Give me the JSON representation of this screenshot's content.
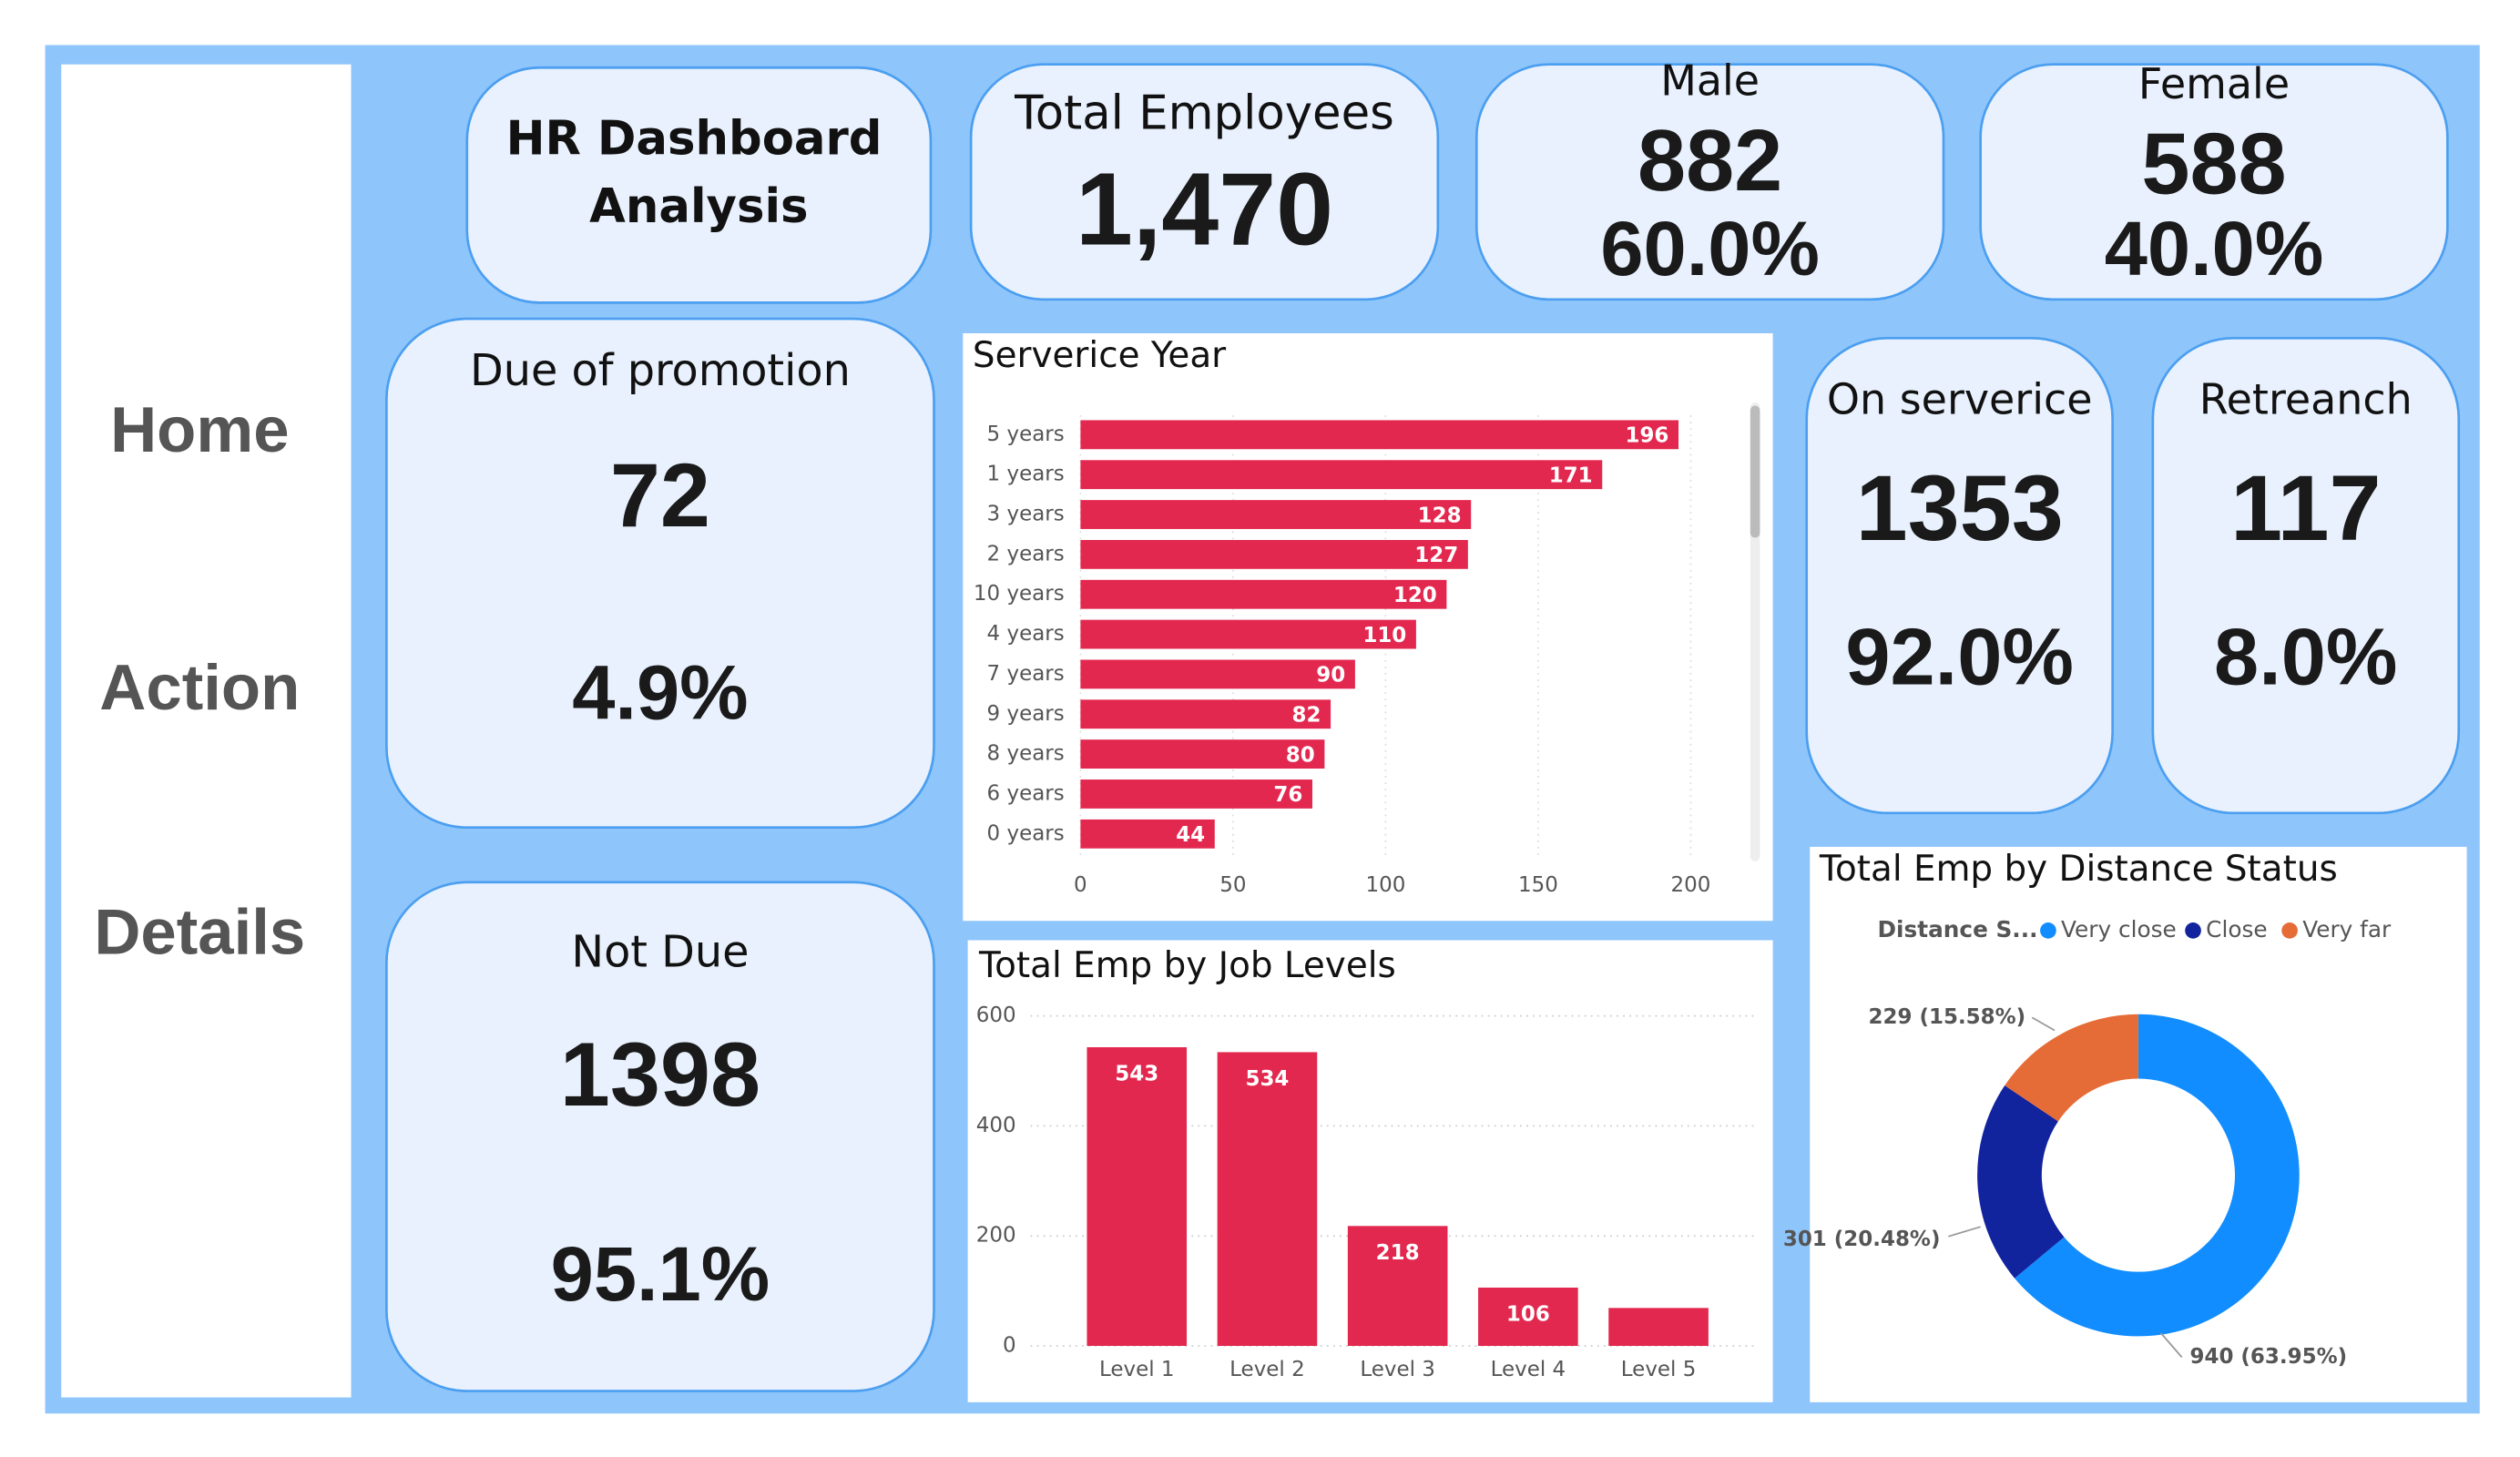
{
  "nav": [
    "Home",
    "Action",
    "Details"
  ],
  "header": {
    "title": [
      "HR Dashboard",
      "Analysis"
    ]
  },
  "cards": [
    {
      "label": "Total Employees",
      "value": "1,470"
    },
    {
      "label": "Male",
      "value": "882",
      "percent": "60.0%"
    },
    {
      "label": "Female",
      "value": "588",
      "percent": "40.0%"
    },
    {
      "label": "Due of promotion",
      "value": "72",
      "percent": "4.9%"
    },
    {
      "label": "Not Due",
      "value": "1398",
      "percent": "95.1%"
    },
    {
      "label": "On serverice",
      "value": "1353",
      "percent": "92.0%"
    },
    {
      "label": "Retreanch",
      "value": "117",
      "percent": "8.0%"
    }
  ],
  "chart_data": [
    {
      "type": "hbar",
      "title": "Serverice Year",
      "categories": [
        "5 years",
        "1 years",
        "3 years",
        "2 years",
        "10 years",
        "4 years",
        "7 years",
        "9 years",
        "8 years",
        "6 years",
        "0 years"
      ],
      "values": [
        196,
        171,
        128,
        127,
        120,
        110,
        90,
        82,
        80,
        76,
        44
      ],
      "color": "#e3284f",
      "xlim": [
        0,
        200
      ],
      "xticks": [
        0,
        50,
        100,
        150,
        200
      ],
      "grid": true
    },
    {
      "type": "bar",
      "title": "Total Emp by Job Levels",
      "categories": [
        "Level 1",
        "Level 2",
        "Level 3",
        "Level 4",
        "Level 5"
      ],
      "values": [
        543,
        534,
        218,
        106,
        69
      ],
      "value_labels": [
        543,
        534,
        218,
        106,
        null
      ],
      "color": "#e3284f",
      "ylim": [
        0,
        600
      ],
      "yticks": [
        0,
        200,
        400,
        600
      ],
      "grid": true
    },
    {
      "type": "donut",
      "title": "Total Emp by Distance Status",
      "legend_title": "Distance S...",
      "categories": [
        "Very close",
        "Close",
        "Very far"
      ],
      "values": [
        940,
        301,
        229
      ],
      "value_labels": [
        "940 (63.95%)",
        "301 (20.48%)",
        "229 (15.58%)"
      ],
      "colors": [
        "#118dff",
        "#12239e",
        "#e66c37"
      ],
      "legend": "top"
    }
  ]
}
